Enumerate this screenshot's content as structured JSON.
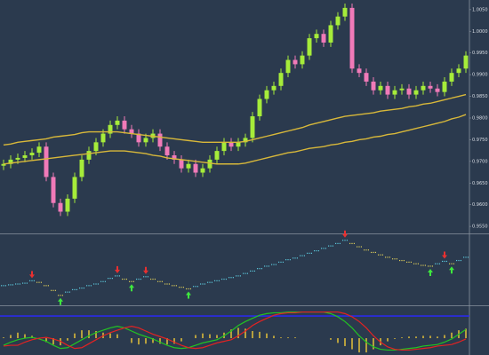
{
  "chart_data": [
    {
      "type": "candlestick",
      "up_color": "#a6ec3a",
      "down_color": "#f07ab8",
      "ylim": [
        0.954,
        1.0064
      ],
      "yticks": [
        {
          "value": 0.955,
          "label": "0.9550"
        },
        {
          "value": 0.96,
          "label": "0.9600"
        },
        {
          "value": 0.965,
          "label": "0.9650"
        },
        {
          "value": 0.97,
          "label": "0.9700"
        },
        {
          "value": 0.975,
          "label": "0.9750"
        },
        {
          "value": 0.98,
          "label": "0.9800"
        },
        {
          "value": 0.985,
          "label": "0.9850"
        },
        {
          "value": 0.99,
          "label": "0.9900"
        },
        {
          "value": 0.995,
          "label": "0.9950"
        },
        {
          "value": 1.0,
          "label": "1.0000"
        },
        {
          "value": 1.005,
          "label": "1.0050"
        }
      ],
      "open": [
        0.969,
        0.9694,
        0.9704,
        0.9708,
        0.9714,
        0.972,
        0.9734,
        0.9664,
        0.9604,
        0.9584,
        0.9614,
        0.9664,
        0.9704,
        0.9724,
        0.9744,
        0.9764,
        0.9784,
        0.9794,
        0.9774,
        0.9764,
        0.9744,
        0.9754,
        0.9764,
        0.9734,
        0.9714,
        0.9704,
        0.9684,
        0.9694,
        0.9674,
        0.9684,
        0.9704,
        0.9724,
        0.9744,
        0.9734,
        0.9744,
        0.9754,
        0.9804,
        0.9844,
        0.9864,
        0.9874,
        0.9904,
        0.9934,
        0.9924,
        0.9944,
        0.9984,
        0.9994,
        0.9974,
        1.0014,
        1.0034,
        1.0054,
        0.9914,
        0.9904,
        0.9884,
        0.9864,
        0.9874,
        0.9854,
        0.9864,
        0.9868,
        0.9854,
        0.9864,
        0.9874,
        0.9868,
        0.986,
        0.9884,
        0.9904,
        0.9914
      ],
      "high": [
        0.9704,
        0.9714,
        0.9718,
        0.9724,
        0.973,
        0.9744,
        0.9744,
        0.9674,
        0.9614,
        0.9624,
        0.9674,
        0.9714,
        0.9734,
        0.9754,
        0.9774,
        0.9794,
        0.9804,
        0.9804,
        0.9784,
        0.9774,
        0.9764,
        0.9774,
        0.9774,
        0.9744,
        0.9724,
        0.9714,
        0.9704,
        0.9704,
        0.9694,
        0.9714,
        0.9734,
        0.9754,
        0.9754,
        0.9754,
        0.9764,
        0.9814,
        0.9854,
        0.9874,
        0.9884,
        0.9914,
        0.9944,
        0.9944,
        0.9954,
        0.9994,
        1.0004,
        1.0004,
        1.0024,
        1.0044,
        1.0064,
        1.0064,
        0.9924,
        0.9914,
        0.9894,
        0.9884,
        0.9884,
        0.9874,
        0.9878,
        0.9878,
        0.9874,
        0.9884,
        0.9884,
        0.9878,
        0.9894,
        0.9914,
        0.9924,
        0.9954
      ],
      "low": [
        0.968,
        0.9684,
        0.9694,
        0.9698,
        0.9704,
        0.971,
        0.9654,
        0.9594,
        0.9574,
        0.9574,
        0.9604,
        0.9654,
        0.9694,
        0.9714,
        0.9734,
        0.9754,
        0.9774,
        0.9764,
        0.9754,
        0.9734,
        0.9734,
        0.9744,
        0.9724,
        0.9704,
        0.9694,
        0.9674,
        0.9674,
        0.9664,
        0.9664,
        0.9674,
        0.9694,
        0.9714,
        0.9724,
        0.9724,
        0.9734,
        0.9744,
        0.9794,
        0.9834,
        0.9854,
        0.9864,
        0.9894,
        0.9914,
        0.9914,
        0.9934,
        0.9974,
        0.9964,
        0.9964,
        1.0004,
        1.0024,
        0.9904,
        0.9894,
        0.9874,
        0.9854,
        0.9854,
        0.9844,
        0.9844,
        0.9854,
        0.9844,
        0.9844,
        0.9854,
        0.9858,
        0.985,
        0.985,
        0.9874,
        0.9894,
        0.9904
      ],
      "close": [
        0.9694,
        0.9704,
        0.9708,
        0.9714,
        0.972,
        0.9734,
        0.9664,
        0.9604,
        0.9584,
        0.9614,
        0.9664,
        0.9704,
        0.9724,
        0.9744,
        0.9764,
        0.9784,
        0.9794,
        0.9774,
        0.9764,
        0.9744,
        0.9754,
        0.9764,
        0.9734,
        0.9714,
        0.9704,
        0.9684,
        0.9694,
        0.9674,
        0.9684,
        0.9704,
        0.9724,
        0.9744,
        0.9734,
        0.9744,
        0.9754,
        0.9804,
        0.9844,
        0.9864,
        0.9874,
        0.9904,
        0.9934,
        0.9924,
        0.9944,
        0.9984,
        0.9994,
        0.9974,
        1.0014,
        1.0034,
        1.0054,
        0.9914,
        0.9904,
        0.9884,
        0.9864,
        0.9874,
        0.9854,
        0.9864,
        0.9868,
        0.9854,
        0.9864,
        0.9874,
        0.9868,
        0.986,
        0.9884,
        0.9904,
        0.9914,
        0.9944
      ],
      "series": [
        {
          "color": "#d8b83a",
          "values": [
            0.9738,
            0.974,
            0.9744,
            0.9746,
            0.9748,
            0.975,
            0.9752,
            0.9756,
            0.9758,
            0.976,
            0.9762,
            0.9766,
            0.9768,
            0.9768,
            0.9768,
            0.9768,
            0.9768,
            0.9766,
            0.9764,
            0.9762,
            0.976,
            0.9758,
            0.9756,
            0.9754,
            0.9752,
            0.975,
            0.9748,
            0.9746,
            0.9744,
            0.9744,
            0.9744,
            0.9744,
            0.9744,
            0.9744,
            0.9746,
            0.975,
            0.9754,
            0.9758,
            0.9762,
            0.9766,
            0.977,
            0.9774,
            0.9778,
            0.9784,
            0.9788,
            0.9792,
            0.9796,
            0.98,
            0.9804,
            0.9806,
            0.9808,
            0.981,
            0.9812,
            0.9816,
            0.9818,
            0.982,
            0.9822,
            0.9826,
            0.9828,
            0.9832,
            0.9834,
            0.9838,
            0.9842,
            0.9846,
            0.985,
            0.9854
          ]
        },
        {
          "color": "#d8b83a",
          "values": [
            0.9694,
            0.9696,
            0.9698,
            0.97,
            0.9702,
            0.9704,
            0.9706,
            0.9708,
            0.971,
            0.9712,
            0.9714,
            0.9716,
            0.9718,
            0.972,
            0.9722,
            0.9724,
            0.9724,
            0.9724,
            0.9722,
            0.972,
            0.9718,
            0.9714,
            0.9712,
            0.9708,
            0.9706,
            0.9704,
            0.9702,
            0.97,
            0.9698,
            0.9696,
            0.9694,
            0.9694,
            0.9694,
            0.9694,
            0.9696,
            0.97,
            0.9704,
            0.9708,
            0.9712,
            0.9716,
            0.972,
            0.9722,
            0.9726,
            0.973,
            0.9732,
            0.9734,
            0.9738,
            0.974,
            0.9744,
            0.9746,
            0.975,
            0.9752,
            0.9756,
            0.9758,
            0.9762,
            0.9764,
            0.9768,
            0.9772,
            0.9776,
            0.978,
            0.9784,
            0.9788,
            0.9792,
            0.9798,
            0.9802,
            0.9808
          ]
        }
      ]
    },
    {
      "type": "signal-dots",
      "up_color": "#5cc8dc",
      "down_color": "#dccc5a",
      "buy_color": "#3ee83e",
      "sell_color": "#e83030",
      "ylim": [
        0,
        80
      ],
      "values": [
        21,
        22,
        23,
        24,
        27,
        25,
        21,
        15,
        9,
        13,
        16,
        18,
        21,
        23,
        26,
        30,
        33,
        29,
        26,
        29,
        32,
        29,
        26,
        23,
        21,
        19,
        17,
        20,
        23,
        25,
        27,
        29,
        31,
        33,
        36,
        39,
        42,
        45,
        47,
        50,
        53,
        55,
        58,
        61,
        64,
        67,
        70,
        73,
        77,
        73,
        69,
        65,
        62,
        59,
        56,
        54,
        52,
        50,
        48,
        46,
        45,
        48,
        51,
        48,
        52,
        56
      ],
      "buy_arrows": [
        null,
        null,
        null,
        null,
        null,
        null,
        null,
        null,
        9,
        null,
        null,
        null,
        null,
        null,
        null,
        null,
        null,
        null,
        26,
        null,
        null,
        null,
        null,
        null,
        null,
        null,
        17,
        null,
        null,
        null,
        null,
        null,
        null,
        null,
        null,
        null,
        null,
        null,
        null,
        null,
        null,
        null,
        null,
        null,
        null,
        null,
        null,
        null,
        null,
        null,
        null,
        null,
        null,
        null,
        null,
        null,
        null,
        null,
        null,
        null,
        45,
        null,
        null,
        48,
        null,
        null
      ],
      "sell_arrows": [
        null,
        null,
        null,
        null,
        27,
        null,
        null,
        null,
        null,
        null,
        null,
        null,
        null,
        null,
        null,
        null,
        33,
        null,
        null,
        null,
        32,
        null,
        null,
        null,
        null,
        null,
        null,
        null,
        null,
        null,
        null,
        null,
        null,
        null,
        null,
        null,
        null,
        null,
        null,
        null,
        null,
        null,
        null,
        null,
        null,
        null,
        null,
        null,
        77,
        null,
        null,
        null,
        null,
        null,
        null,
        null,
        null,
        null,
        null,
        null,
        null,
        null,
        51,
        null,
        null,
        null
      ]
    },
    {
      "type": "oscillator",
      "ylim": [
        -19,
        37
      ],
      "level": 28,
      "level_color": "#2a2ae8",
      "histogram_color": "#d8b83a",
      "histogram": [
        1,
        4,
        7,
        5,
        3,
        -1,
        -5,
        -8,
        -9,
        -3,
        6,
        10,
        10,
        9,
        7,
        6,
        5,
        0,
        -6,
        -8,
        -7,
        -6,
        -7,
        -8,
        -7,
        -4,
        0,
        4,
        6,
        5,
        4,
        7,
        11,
        13,
        12,
        9,
        8,
        6,
        3,
        1,
        1,
        1,
        0,
        0,
        0,
        0,
        -2,
        -6,
        -10,
        -14,
        -18,
        -18,
        -14,
        -9,
        -4,
        -1,
        1,
        2,
        2,
        3,
        3,
        2,
        4,
        7,
        10,
        12
      ],
      "series": [
        {
          "color": "#22c422",
          "values": [
            -9,
            -5,
            -2,
            0,
            1,
            -1,
            -4,
            -9,
            -13,
            -12,
            -7,
            -2,
            3,
            7,
            10,
            13,
            15,
            13,
            9,
            5,
            2,
            -1,
            -5,
            -9,
            -12,
            -13,
            -12,
            -9,
            -6,
            -4,
            -2,
            3,
            9,
            16,
            21,
            25,
            29,
            31,
            32,
            32,
            33,
            33,
            33,
            33,
            33,
            33,
            31,
            27,
            21,
            13,
            3,
            -5,
            -11,
            -14,
            -15,
            -15,
            -14,
            -13,
            -12,
            -10,
            -9,
            -8,
            -5,
            -1,
            5,
            11
          ]
        },
        {
          "color": "#e42222",
          "values": [
            -10,
            -9,
            -9,
            -5,
            -2,
            0,
            1,
            -1,
            -4,
            -9,
            -13,
            -12,
            -7,
            -2,
            3,
            7,
            10,
            13,
            15,
            13,
            9,
            5,
            2,
            -1,
            -5,
            -9,
            -12,
            -13,
            -12,
            -9,
            -6,
            -4,
            -2,
            3,
            9,
            16,
            21,
            25,
            29,
            31,
            32,
            32,
            33,
            33,
            33,
            33,
            33,
            33,
            31,
            27,
            21,
            13,
            3,
            -5,
            -11,
            -14,
            -15,
            -15,
            -14,
            -13,
            -12,
            -10,
            -9,
            -8,
            -5,
            -1
          ]
        }
      ]
    }
  ]
}
